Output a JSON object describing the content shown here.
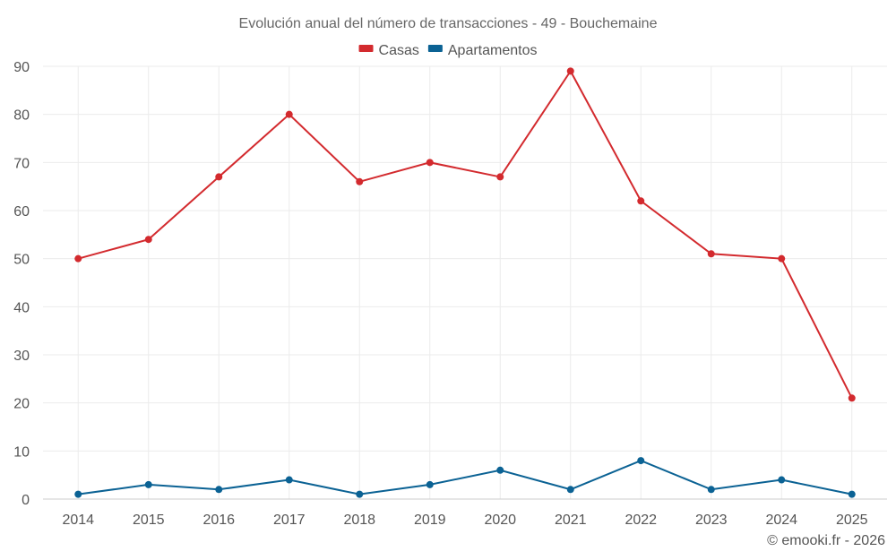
{
  "chart_data": {
    "type": "line",
    "title": "Evolución anual del número de transacciones - 49 - Bouchemaine",
    "xlabel": "",
    "ylabel": "",
    "categories": [
      "2014",
      "2015",
      "2016",
      "2017",
      "2018",
      "2019",
      "2020",
      "2021",
      "2022",
      "2023",
      "2024",
      "2025"
    ],
    "ylim": [
      0,
      90
    ],
    "yticks": [
      0,
      10,
      20,
      30,
      40,
      50,
      60,
      70,
      80,
      90
    ],
    "grid": true,
    "legend_position": "top-center",
    "series": [
      {
        "name": "Casas",
        "color": "#d32a2e",
        "values": [
          50,
          54,
          67,
          80,
          66,
          70,
          67,
          89,
          62,
          51,
          50,
          21
        ]
      },
      {
        "name": "Apartamentos",
        "color": "#0b6294",
        "values": [
          1,
          3,
          2,
          4,
          1,
          3,
          6,
          2,
          8,
          2,
          4,
          1
        ]
      }
    ]
  },
  "credit": "© emooki.fr - 2026"
}
